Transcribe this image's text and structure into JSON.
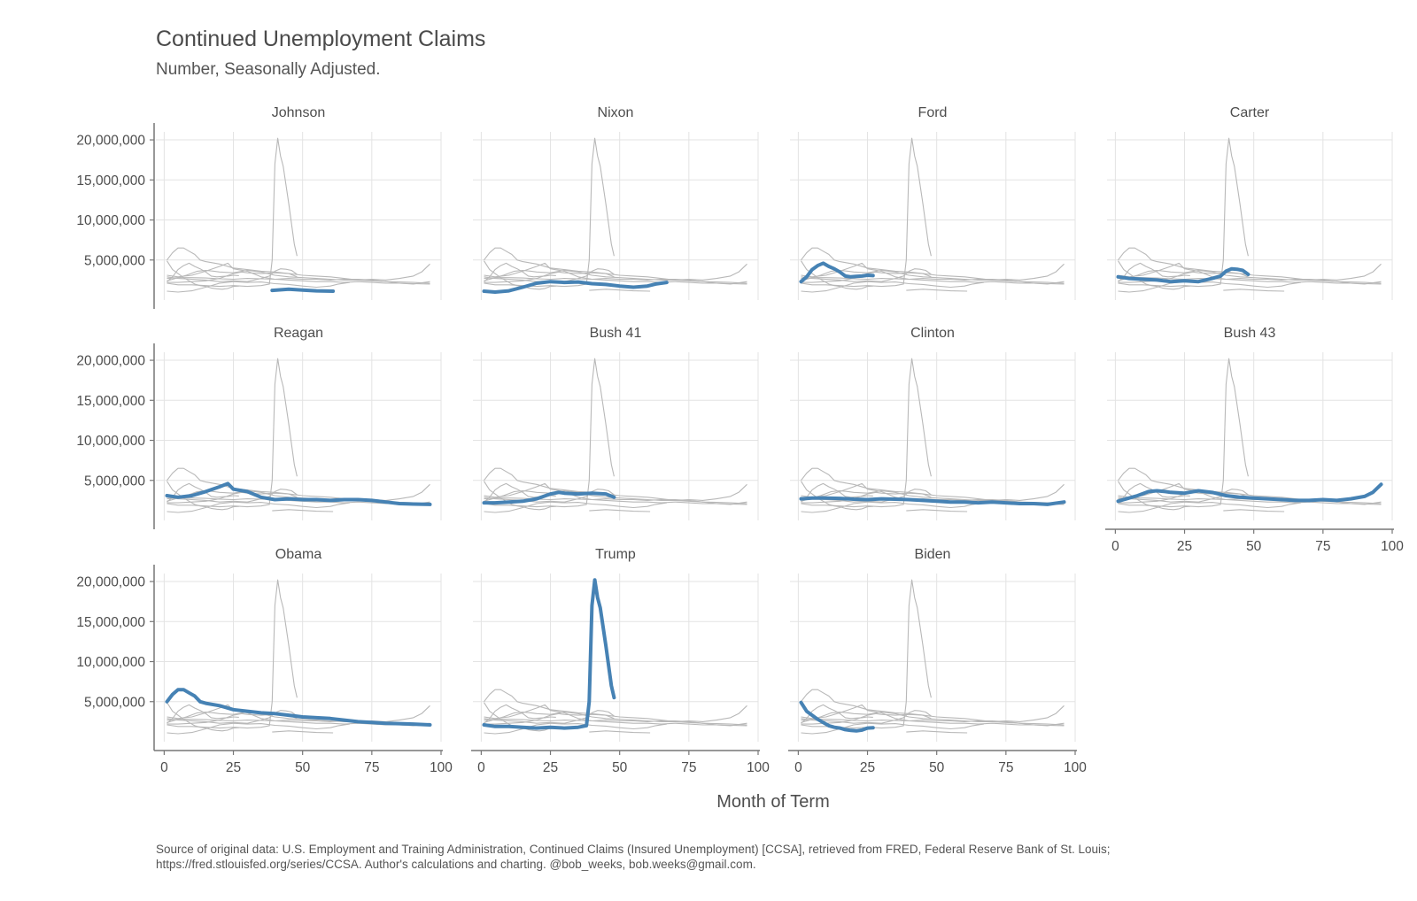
{
  "title": "Continued Unemployment Claims",
  "subtitle": "Number, Seasonally Adjusted.",
  "caption_line1": "Source of original data: U.S. Employment and Training Administration, Continued Claims (Insured Unemployment) [CCSA], retrieved from FRED, Federal Reserve Bank of St. Louis;",
  "caption_line2": "https://fred.stlouisfed.org/series/CCSA. Author's calculations and charting. @bob_weeks, bob.weeks@gmail.com.",
  "colors": {
    "highlight": "#4682b4",
    "background_lines": "#b8b8b8",
    "grid": "#e3e3e3",
    "axis": "#777777"
  },
  "chart_data": {
    "type": "line",
    "layout": "small-multiples",
    "xlabel": "Month of Term",
    "ylabel": "",
    "xlim": [
      -3,
      100
    ],
    "ylim": [
      0,
      21000000
    ],
    "x_ticks": [
      0,
      25,
      50,
      75,
      100
    ],
    "y_ticks": [
      5000000,
      10000000,
      15000000,
      20000000
    ],
    "y_tick_labels": [
      "5,000,000",
      "10,000,000",
      "15,000,000",
      "20,000,000"
    ],
    "grid": true,
    "series": [
      {
        "name": "Johnson",
        "x": [
          39,
          45,
          50,
          55,
          61
        ],
        "y": [
          1200000,
          1350000,
          1250000,
          1150000,
          1100000
        ]
      },
      {
        "name": "Nixon",
        "x": [
          1,
          5,
          10,
          15,
          20,
          25,
          30,
          35,
          40,
          45,
          50,
          55,
          60,
          63,
          67
        ],
        "y": [
          1100000,
          1000000,
          1150000,
          1600000,
          2100000,
          2300000,
          2200000,
          2250000,
          2050000,
          1950000,
          1750000,
          1600000,
          1750000,
          2000000,
          2200000
        ]
      },
      {
        "name": "Ford",
        "x": [
          1,
          3,
          5,
          7,
          9,
          11,
          13,
          15,
          17,
          19,
          21,
          23,
          25,
          27
        ],
        "y": [
          2300000,
          2900000,
          3800000,
          4300000,
          4600000,
          4200000,
          3900000,
          3500000,
          3000000,
          2900000,
          2950000,
          3000000,
          3100000,
          3050000
        ]
      },
      {
        "name": "Carter",
        "x": [
          1,
          5,
          10,
          15,
          20,
          25,
          30,
          35,
          38,
          40,
          42,
          44,
          46,
          48
        ],
        "y": [
          2900000,
          2700000,
          2600000,
          2500000,
          2300000,
          2400000,
          2300000,
          2700000,
          3000000,
          3600000,
          3900000,
          3850000,
          3700000,
          3200000
        ]
      },
      {
        "name": "Reagan",
        "x": [
          1,
          5,
          10,
          15,
          20,
          23,
          25,
          30,
          35,
          40,
          45,
          50,
          55,
          60,
          65,
          70,
          75,
          80,
          85,
          90,
          96
        ],
        "y": [
          3100000,
          2900000,
          3100000,
          3600000,
          4200000,
          4600000,
          3900000,
          3600000,
          2900000,
          2600000,
          2700000,
          2600000,
          2600000,
          2500000,
          2600000,
          2600000,
          2500000,
          2300000,
          2100000,
          2050000,
          2000000
        ]
      },
      {
        "name": "Bush 41",
        "x": [
          1,
          5,
          10,
          15,
          20,
          25,
          28,
          30,
          35,
          40,
          45,
          48
        ],
        "y": [
          2200000,
          2200000,
          2300000,
          2400000,
          2700000,
          3300000,
          3500000,
          3400000,
          3300000,
          3400000,
          3300000,
          2900000
        ]
      },
      {
        "name": "Clinton",
        "x": [
          1,
          5,
          10,
          15,
          20,
          25,
          30,
          35,
          40,
          45,
          50,
          55,
          60,
          65,
          70,
          75,
          80,
          85,
          90,
          96
        ],
        "y": [
          2700000,
          2800000,
          2800000,
          2750000,
          2650000,
          2600000,
          2700000,
          2650000,
          2600000,
          2500000,
          2400000,
          2300000,
          2300000,
          2200000,
          2300000,
          2200000,
          2100000,
          2100000,
          2000000,
          2300000
        ]
      },
      {
        "name": "Bush 43",
        "x": [
          1,
          5,
          8,
          12,
          15,
          18,
          20,
          25,
          30,
          35,
          40,
          45,
          50,
          55,
          60,
          65,
          70,
          75,
          80,
          85,
          90,
          93,
          96
        ],
        "y": [
          2400000,
          2800000,
          3100000,
          3600000,
          3700000,
          3600000,
          3500000,
          3400000,
          3700000,
          3500000,
          3100000,
          2900000,
          2800000,
          2700000,
          2600000,
          2500000,
          2500000,
          2600000,
          2500000,
          2700000,
          3000000,
          3500000,
          4500000
        ]
      },
      {
        "name": "Obama",
        "x": [
          1,
          3,
          5,
          7,
          9,
          11,
          13,
          15,
          20,
          25,
          30,
          35,
          40,
          45,
          50,
          55,
          60,
          65,
          70,
          75,
          80,
          85,
          90,
          96
        ],
        "y": [
          5000000,
          5900000,
          6500000,
          6500000,
          6100000,
          5700000,
          5000000,
          4800000,
          4500000,
          4000000,
          3800000,
          3600000,
          3500000,
          3300000,
          3100000,
          3000000,
          2900000,
          2700000,
          2500000,
          2400000,
          2300000,
          2250000,
          2200000,
          2100000
        ]
      },
      {
        "name": "Trump",
        "x": [
          1,
          5,
          10,
          15,
          20,
          25,
          30,
          35,
          38,
          39,
          40,
          41,
          42,
          43,
          45,
          47,
          48
        ],
        "y": [
          2100000,
          1900000,
          1900000,
          1800000,
          1700000,
          1800000,
          1700000,
          1800000,
          2000000,
          5000000,
          17000000,
          20200000,
          18000000,
          16700000,
          12000000,
          7000000,
          5500000
        ]
      },
      {
        "name": "Biden",
        "x": [
          1,
          3,
          5,
          7,
          9,
          11,
          13,
          15,
          17,
          19,
          21,
          23,
          25,
          27
        ],
        "y": [
          4900000,
          3800000,
          3300000,
          2800000,
          2400000,
          2000000,
          1800000,
          1700000,
          1500000,
          1400000,
          1350000,
          1450000,
          1700000,
          1750000
        ]
      }
    ]
  }
}
